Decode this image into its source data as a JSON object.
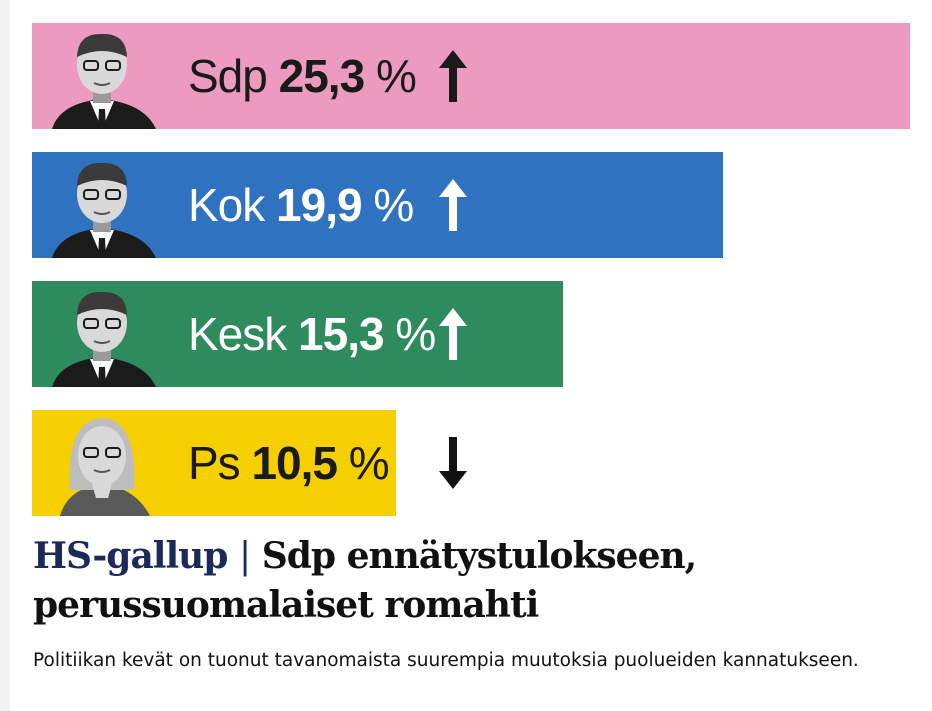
{
  "chart_data": {
    "type": "bar",
    "orientation": "horizontal",
    "categories": [
      "Sdp",
      "Kok",
      "Kesk",
      "Ps"
    ],
    "values": [
      25.3,
      19.9,
      15.3,
      10.5
    ],
    "value_labels": [
      "25,3 %",
      "19,9 %",
      "15,3 %",
      "10,5 %"
    ],
    "trend": [
      "up",
      "up",
      "up",
      "down"
    ],
    "colors": [
      "#ec9ac0",
      "#2f73c0",
      "#2e8b5e",
      "#f6cf00"
    ],
    "text_colors": [
      "#1a1a1a",
      "#ffffff",
      "#ffffff",
      "#1a1a1a"
    ],
    "portraits": [
      "man-glasses-portrait",
      "man-glasses-portrait",
      "man-portrait",
      "woman-portrait"
    ]
  },
  "article": {
    "kicker": "HS-gallup",
    "separator": "|",
    "title": "Sdp ennätystulokseen, perussuomalaiset romahti",
    "lead": "Politiikan kevät on tuonut tavanomaista suurempia muutoksia puolueiden kannatukseen."
  }
}
